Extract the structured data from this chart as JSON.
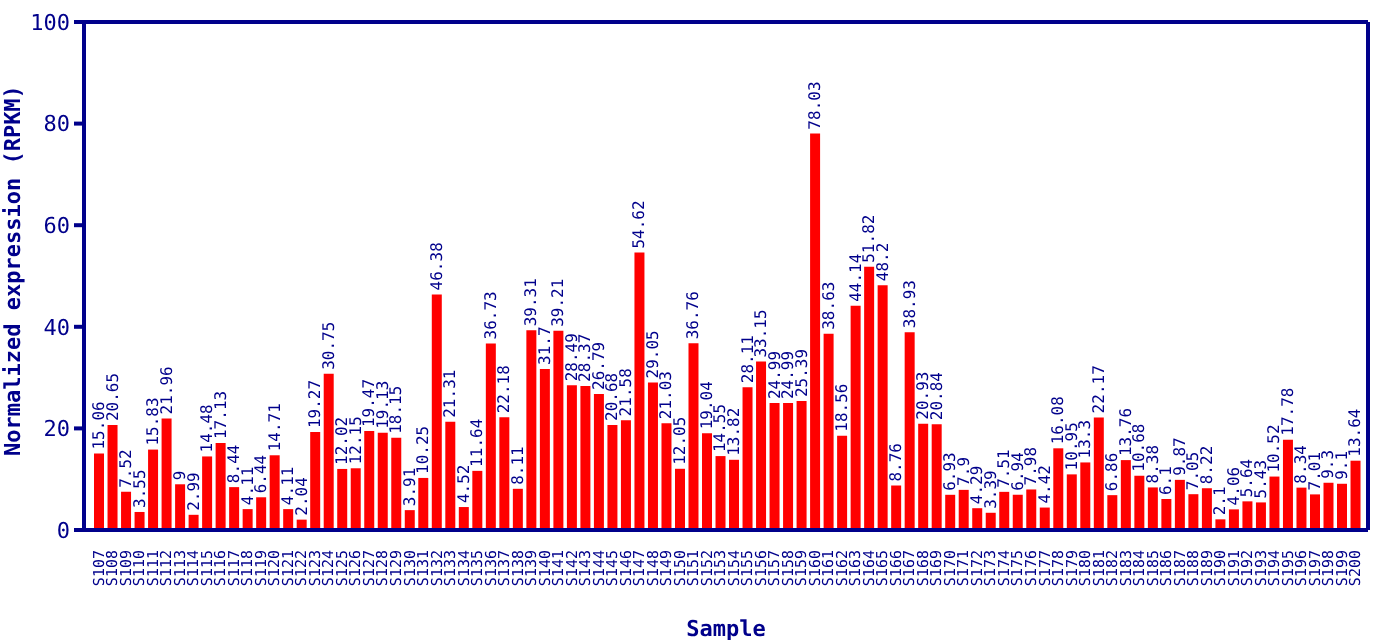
{
  "chart_data": {
    "type": "bar",
    "xlabel": "Sample",
    "ylabel": "Normalized expression (RPKM)",
    "categories": [
      "S107",
      "S108",
      "S109",
      "S110",
      "S111",
      "S112",
      "S113",
      "S114",
      "S115",
      "S116",
      "S117",
      "S118",
      "S119",
      "S120",
      "S121",
      "S122",
      "S123",
      "S124",
      "S125",
      "S126",
      "S127",
      "S128",
      "S129",
      "S130",
      "S131",
      "S132",
      "S133",
      "S134",
      "S135",
      "S136",
      "S137",
      "S138",
      "S139",
      "S140",
      "S141",
      "S142",
      "S143",
      "S144",
      "S145",
      "S146",
      "S147",
      "S148",
      "S149",
      "S150",
      "S151",
      "S152",
      "S153",
      "S154",
      "S155",
      "S156",
      "S157",
      "S158",
      "S159",
      "S160",
      "S161",
      "S162",
      "S163",
      "S164",
      "S165",
      "S166",
      "S167",
      "S168",
      "S169",
      "S170",
      "S171",
      "S172",
      "S173",
      "S174",
      "S175",
      "S176",
      "S177",
      "S178",
      "S179",
      "S180",
      "S181",
      "S182",
      "S183",
      "S184",
      "S185",
      "S186",
      "S187",
      "S188",
      "S189",
      "S190",
      "S191",
      "S192",
      "S193",
      "S194",
      "S195",
      "S196",
      "S197",
      "S198",
      "S199",
      "S200"
    ],
    "values": [
      15.06,
      20.65,
      7.52,
      3.55,
      15.83,
      21.96,
      9,
      2.99,
      14.48,
      17.13,
      8.44,
      4.11,
      6.44,
      14.71,
      4.11,
      2.04,
      19.27,
      30.75,
      12.02,
      12.15,
      19.47,
      19.13,
      18.15,
      3.91,
      10.25,
      46.38,
      21.31,
      4.52,
      11.64,
      36.73,
      22.18,
      8.11,
      39.31,
      31.7,
      39.21,
      28.49,
      28.37,
      26.79,
      20.68,
      21.58,
      54.62,
      29.05,
      21.03,
      12.05,
      36.76,
      19.04,
      14.55,
      13.82,
      28.11,
      33.15,
      24.99,
      24.99,
      25.39,
      78.03,
      38.63,
      18.56,
      44.14,
      51.82,
      48.2,
      8.76,
      38.93,
      20.93,
      20.84,
      6.93,
      7.9,
      4.29,
      3.39,
      7.51,
      6.94,
      7.98,
      4.42,
      16.08,
      10.95,
      13.3,
      22.17,
      6.86,
      13.76,
      10.68,
      8.38,
      6.1,
      9.87,
      7.05,
      8.22,
      2.1,
      4.06,
      5.64,
      5.43,
      10.52,
      17.78,
      8.34,
      7.01,
      9.3,
      9.1,
      13.64
    ],
    "color": "#ff0000",
    "ylim": [
      0,
      100
    ],
    "yticks": [
      0,
      20,
      40,
      60,
      80,
      100
    ],
    "data_labels": true,
    "grid": false
  }
}
